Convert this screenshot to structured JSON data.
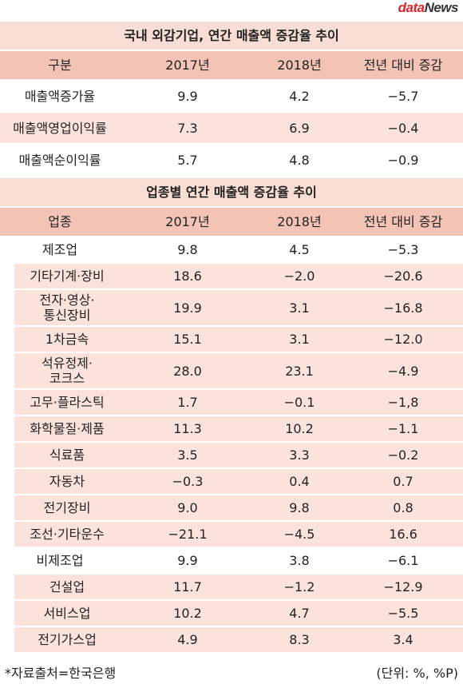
{
  "logo": [
    "data",
    "News"
  ],
  "sections": [
    {
      "title": "국내 외감기업, 연간 매출액 증감율 추이",
      "header": [
        "구분",
        "2017년",
        "2018년",
        "전년 대비 증감"
      ],
      "rows": [
        [
          "매출액증가율",
          "9.9",
          "4.2",
          "−5.7"
        ],
        [
          "매출액영업이익률",
          "7.3",
          "6.9",
          "−0.4"
        ],
        [
          "매출액순이익률",
          "5.7",
          "4.8",
          "−0.9"
        ]
      ]
    },
    {
      "title": "업종별 연간 매출액 증감율 추이",
      "header": [
        "업종",
        "2017년",
        "2018년",
        "전년 대비 증감"
      ],
      "groups": [
        {
          "row": [
            "제조업",
            "9.8",
            "4.5",
            "−5.3"
          ],
          "items": [
            [
              "기타기계·장비",
              "18.6",
              "−2.0",
              "−20.6"
            ],
            [
              "전자·영상·\n통신장비",
              "19.9",
              "3.1",
              "−16.8"
            ],
            [
              "1차금속",
              "15.1",
              "3.1",
              "−12.0"
            ],
            [
              "석유정제·\n코크스",
              "28.0",
              "23.1",
              "−4.9"
            ],
            [
              "고무·플라스틱",
              "1.7",
              "−0.1",
              "−1,8"
            ],
            [
              "화학물질·제품",
              "11.3",
              "10.2",
              "−1.1"
            ],
            [
              "식료품",
              "3.5",
              "3.3",
              "−0.2"
            ],
            [
              "자동차",
              "−0.3",
              "0.4",
              "0.7"
            ],
            [
              "전기장비",
              "9.0",
              "9.8",
              "0.8"
            ],
            [
              "조선·기타운수",
              "−21.1",
              "−4.5",
              "16.6"
            ]
          ]
        },
        {
          "row": [
            "비제조업",
            "9.9",
            "3.8",
            "−6.1"
          ],
          "items": [
            [
              "건설업",
              "11.7",
              "−1.2",
              "−12.9"
            ],
            [
              "서비스업",
              "10.2",
              "4.7",
              "−5.5"
            ],
            [
              "전기가스업",
              "4.9",
              "8.3",
              "3.4"
            ]
          ]
        }
      ]
    }
  ],
  "footer": {
    "source": "*자료출처=한국은행",
    "unit": "(단위: %, %P)"
  }
}
